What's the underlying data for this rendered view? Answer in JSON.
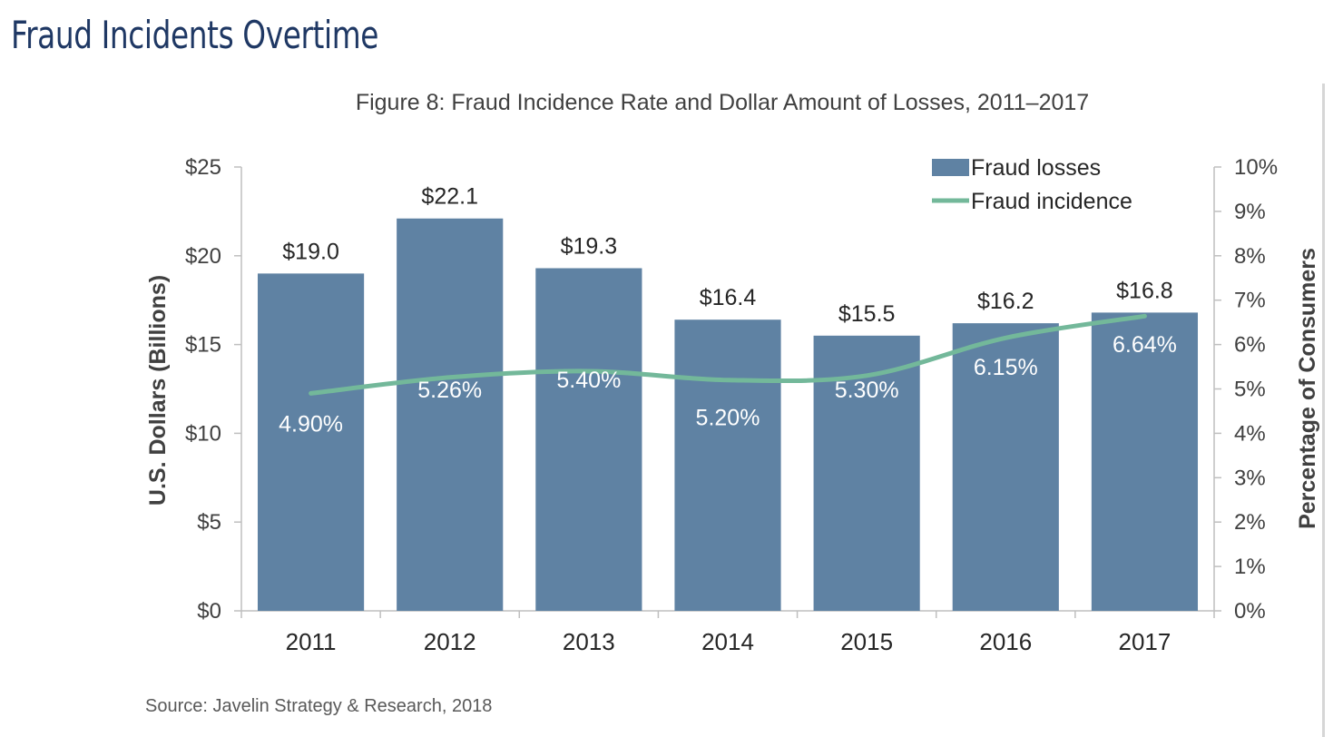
{
  "header": {
    "title": "Fraud Incidents Overtime"
  },
  "chart_data": {
    "type": "bar",
    "title": "Figure 8: Fraud Incidence Rate and Dollar Amount of Losses, 2011–2017",
    "source": "Source: Javelin Strategy & Research, 2018",
    "categories": [
      "2011",
      "2012",
      "2013",
      "2014",
      "2015",
      "2016",
      "2017"
    ],
    "y_left": {
      "label": "U.S. Dollars (Billions)",
      "range": [
        0,
        25
      ],
      "ticks": [
        "$0",
        "$5",
        "$10",
        "$15",
        "$20",
        "$25"
      ]
    },
    "y_right": {
      "label": "Percentage of Consumers",
      "range": [
        0,
        10
      ],
      "ticks": [
        "0%",
        "1%",
        "2%",
        "3%",
        "4%",
        "5%",
        "6%",
        "7%",
        "8%",
        "9%",
        "10%"
      ]
    },
    "series": [
      {
        "name": "Fraud losses",
        "kind": "bar",
        "axis": "left",
        "color": "#5f82a3",
        "values": [
          19.0,
          22.1,
          19.3,
          16.4,
          15.5,
          16.2,
          16.8
        ],
        "labels": [
          "$19.0",
          "$22.1",
          "$19.3",
          "$16.4",
          "$15.5",
          "$16.2",
          "$16.8"
        ]
      },
      {
        "name": "Fraud incidence",
        "kind": "line",
        "axis": "right",
        "color": "#73b89a",
        "values": [
          4.9,
          5.26,
          5.4,
          5.2,
          5.3,
          6.15,
          6.64
        ],
        "labels": [
          "4.90%",
          "5.26%",
          "5.40%",
          "5.20%",
          "5.30%",
          "6.15%",
          "6.64%"
        ]
      }
    ],
    "legend_position": "top-right",
    "grid": false
  }
}
